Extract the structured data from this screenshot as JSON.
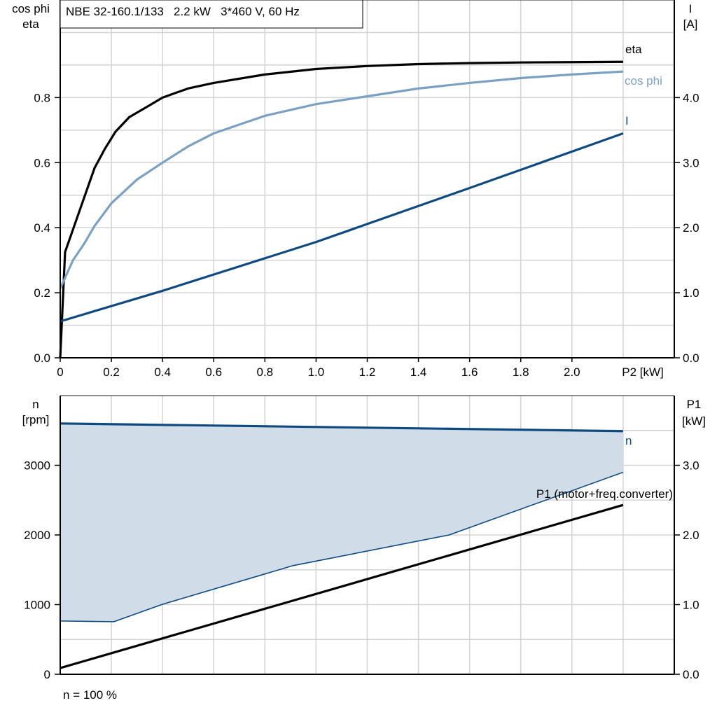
{
  "chart_data": [
    {
      "type": "line",
      "title": "NBE 32-160.1/133   2.2 kW   3*460 V, 60 Hz",
      "xlabel": "P2 [kW]",
      "ylabel_left": [
        "cos phi",
        "eta"
      ],
      "ylabel_right": [
        "I",
        "[A]"
      ],
      "xlim": [
        0,
        2.4
      ],
      "ylim_left": [
        0,
        1.1
      ],
      "ylim_right": [
        0,
        5.5
      ],
      "x_ticks": [
        "0",
        "0.2",
        "0.4",
        "0.6",
        "0.8",
        "1.0",
        "1.2",
        "1.4",
        "1.6",
        "1.8",
        "2.0"
      ],
      "y_ticks_left": [
        "0.0",
        "0.2",
        "0.4",
        "0.6",
        "0.8"
      ],
      "y_ticks_right": [
        "0.0",
        "1.0",
        "2.0",
        "3.0",
        "4.0"
      ],
      "grid": true,
      "series": [
        {
          "name": "eta",
          "axis": "left",
          "color": "#000000",
          "x": [
            0,
            0.019,
            0.088,
            0.134,
            0.175,
            0.216,
            0.27,
            0.34,
            0.4,
            0.5,
            0.6,
            0.8,
            1.0,
            1.2,
            1.4,
            1.6,
            1.8,
            2.0,
            2.2
          ],
          "y": [
            0,
            0.325,
            0.48,
            0.583,
            0.643,
            0.695,
            0.74,
            0.772,
            0.8,
            0.828,
            0.845,
            0.871,
            0.888,
            0.897,
            0.903,
            0.906,
            0.908,
            0.909,
            0.91
          ]
        },
        {
          "name": "cos phi",
          "axis": "left",
          "color": "#7aa0c2",
          "x": [
            0,
            0.05,
            0.093,
            0.134,
            0.2,
            0.3,
            0.4,
            0.5,
            0.6,
            0.8,
            1.0,
            1.2,
            1.4,
            1.6,
            1.8,
            2.0,
            2.2
          ],
          "y": [
            0.213,
            0.3,
            0.35,
            0.405,
            0.475,
            0.548,
            0.6,
            0.65,
            0.69,
            0.744,
            0.78,
            0.804,
            0.828,
            0.845,
            0.86,
            0.871,
            0.88
          ]
        },
        {
          "name": "I",
          "axis": "right",
          "color": "#0e4a80",
          "x": [
            0,
            0.4,
            1.0,
            1.6,
            2.2
          ],
          "y": [
            0.56,
            1.03,
            1.78,
            2.61,
            3.45
          ]
        }
      ]
    },
    {
      "type": "area",
      "footnote": "n = 100 %",
      "ylabel_left": [
        "n",
        "[rpm]"
      ],
      "ylabel_right": [
        "P1",
        "[kW]"
      ],
      "xlim": [
        0,
        2.4
      ],
      "ylim_left": [
        0,
        4000
      ],
      "ylim_right": [
        0,
        4.0
      ],
      "y_ticks_left": [
        "0",
        "1000",
        "2000",
        "3000"
      ],
      "y_ticks_right": [
        "0.0",
        "1.0",
        "2.0",
        "3.0"
      ],
      "grid": true,
      "fill_color": "#d0dce7",
      "series": [
        {
          "name": "n",
          "axis": "left",
          "color": "#0e4a80",
          "x": [
            0,
            2.2
          ],
          "y": [
            3600,
            3490
          ]
        },
        {
          "axis": "left",
          "color": "#0e4a80",
          "role": "lower-bound",
          "x": [
            0,
            0.21,
            0.4,
            0.91,
            1.52,
            2.2
          ],
          "y": [
            765,
            755,
            1005,
            1560,
            2000,
            2900
          ]
        },
        {
          "name": "P1 (motor+freq.converter)",
          "axis": "right",
          "color": "#000000",
          "x": [
            0,
            2.2
          ],
          "y": [
            0.09,
            2.43
          ]
        }
      ]
    }
  ]
}
